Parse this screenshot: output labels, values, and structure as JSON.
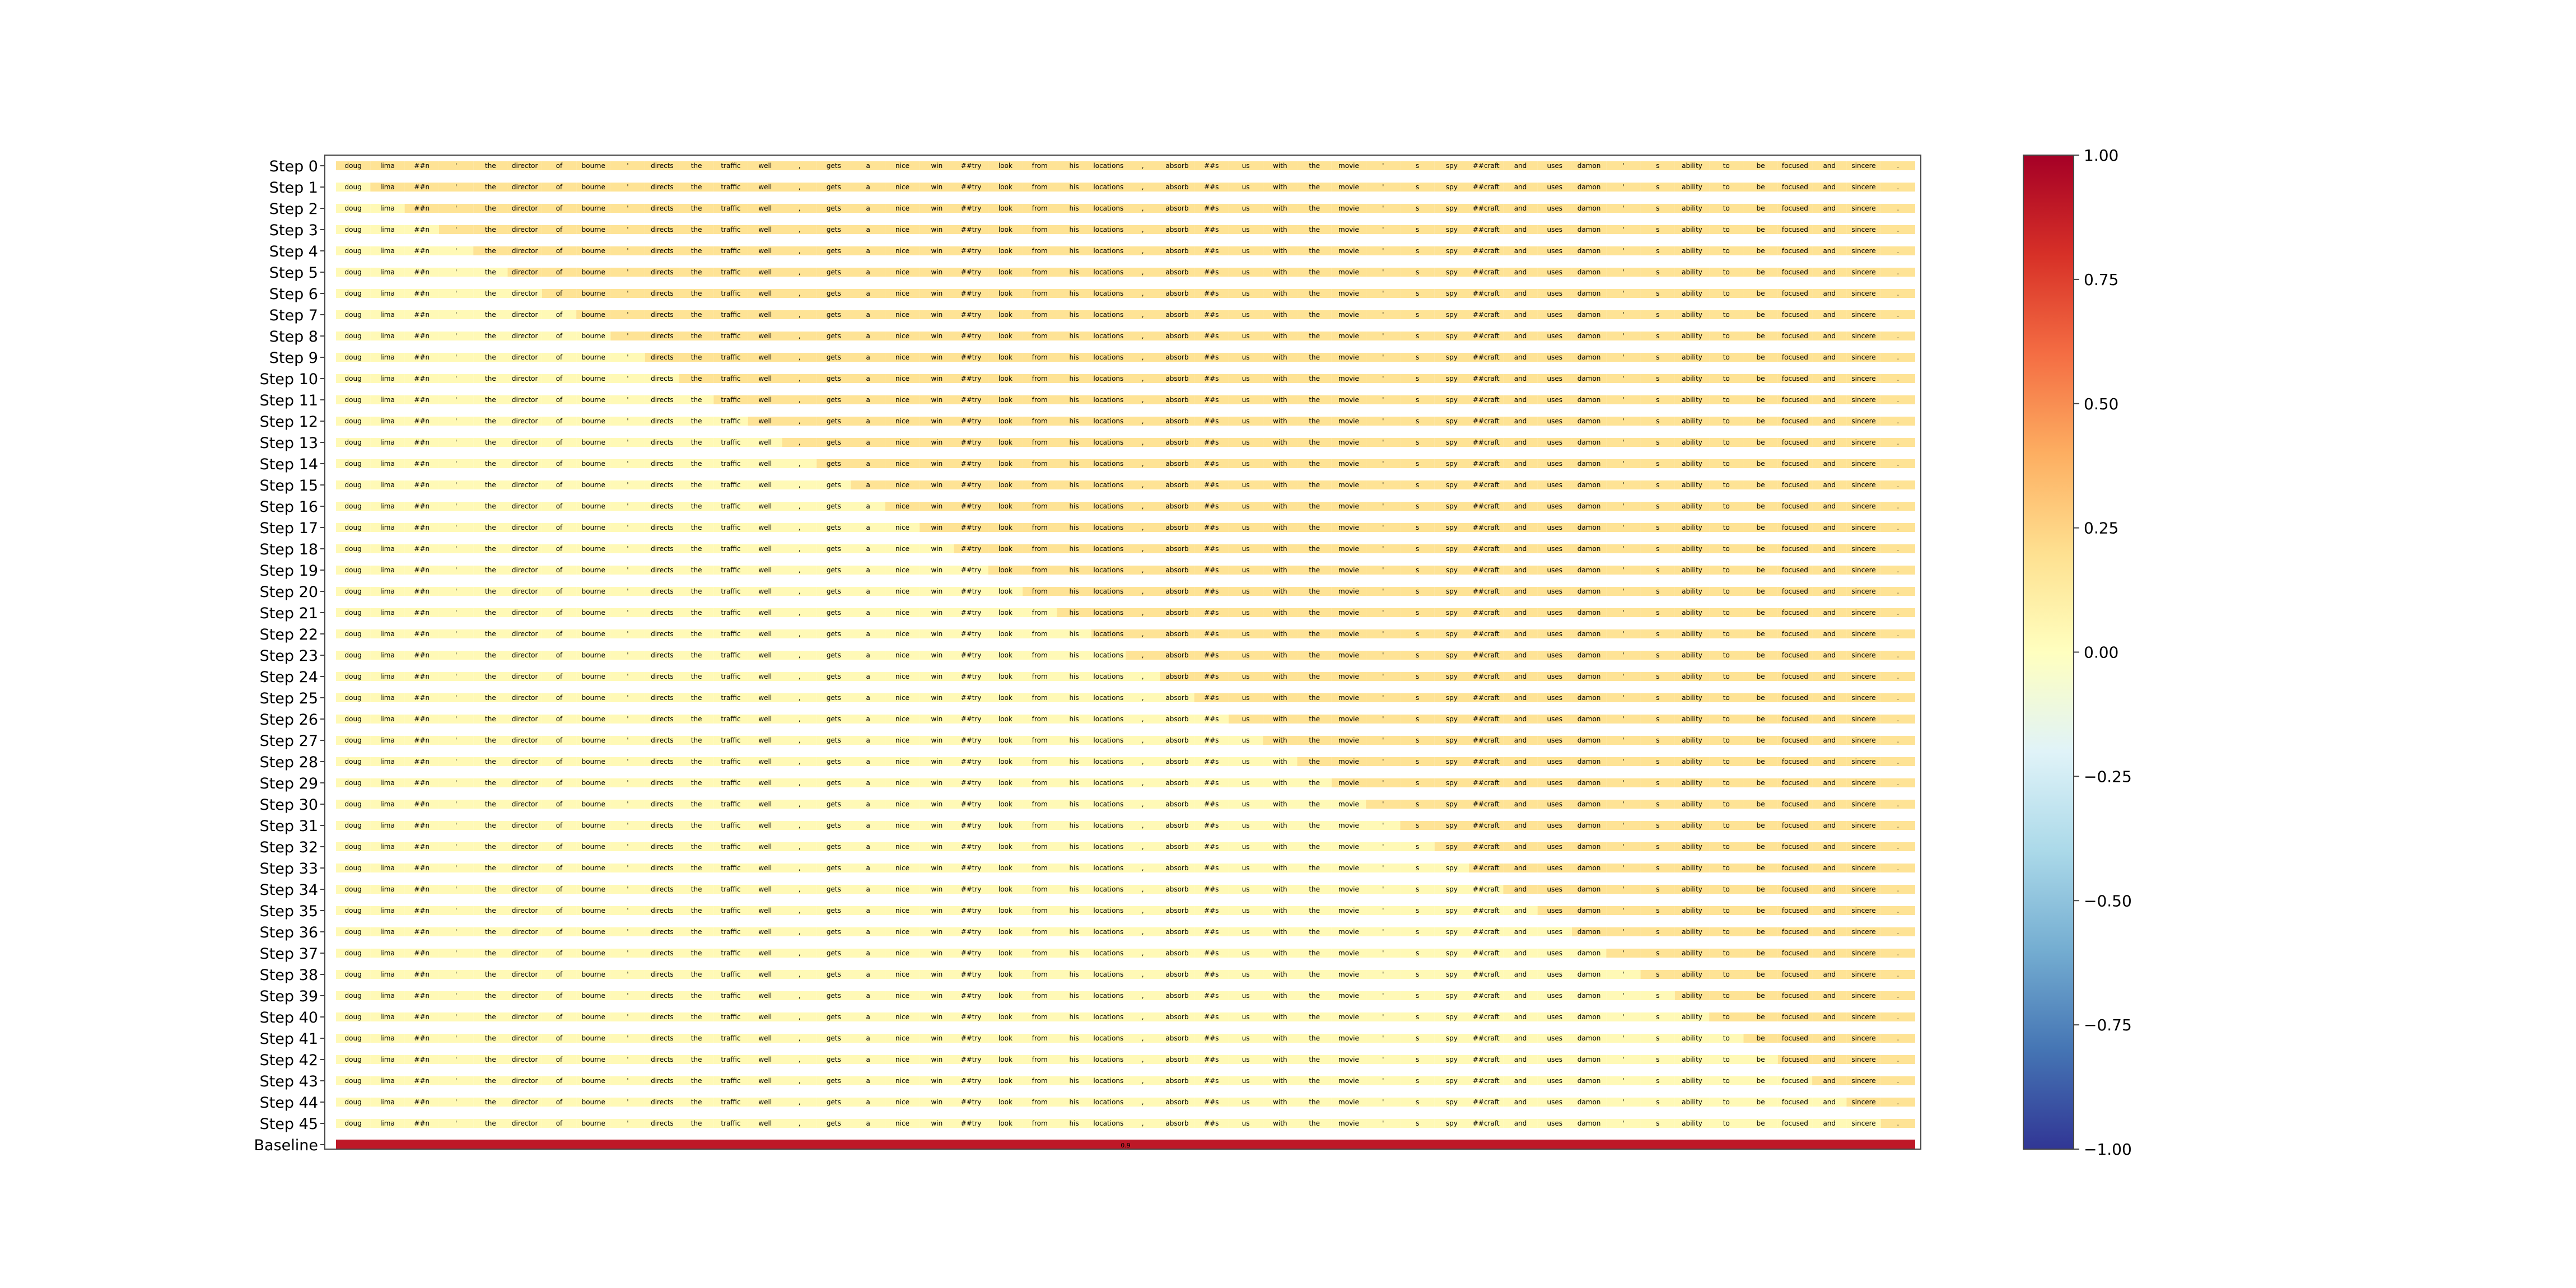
{
  "chart_data": {
    "type": "heatmap",
    "title": "",
    "xlabel": "",
    "ylabel": "",
    "rows": [
      "Step 0",
      "Step 1",
      "Step 2",
      "Step 3",
      "Step 4",
      "Step 5",
      "Step 6",
      "Step 7",
      "Step 8",
      "Step 9",
      "Step 10",
      "Step 11",
      "Step 12",
      "Step 13",
      "Step 14",
      "Step 15",
      "Step 16",
      "Step 17",
      "Step 18",
      "Step 19",
      "Step 20",
      "Step 21",
      "Step 22",
      "Step 23",
      "Step 24",
      "Step 25",
      "Step 26",
      "Step 27",
      "Step 28",
      "Step 29",
      "Step 30",
      "Step 31",
      "Step 32",
      "Step 33",
      "Step 34",
      "Step 35",
      "Step 36",
      "Step 37",
      "Step 38",
      "Step 39",
      "Step 40",
      "Step 41",
      "Step 42",
      "Step 43",
      "Step 44",
      "Step 45",
      "Baseline"
    ],
    "tokens": [
      "doug",
      "lima",
      "##n",
      "'",
      "the",
      "director",
      "of",
      "bourne",
      "'",
      "directs",
      "the",
      "traffic",
      "well",
      ",",
      "gets",
      "a",
      "nice",
      "win",
      "##try",
      "look",
      "from",
      "his",
      "locations",
      ",",
      "absorb",
      "##s",
      "us",
      "with",
      "the",
      "movie",
      "'",
      "s",
      "spy",
      "##craft",
      "and",
      "uses",
      "damon",
      "'",
      "s",
      "ability",
      "to",
      "be",
      "focused",
      "and",
      "sincere",
      "."
    ],
    "baseline_value": 0.9,
    "colorbar": {
      "min": -1.0,
      "max": 1.0,
      "ticks": [
        "1.00",
        "0.75",
        "0.50",
        "0.25",
        "0.00",
        "−0.25",
        "−0.50",
        "−0.75",
        "−1.00"
      ],
      "colormap": "RdYlBu_r"
    },
    "grid": false,
    "legend": "none"
  }
}
